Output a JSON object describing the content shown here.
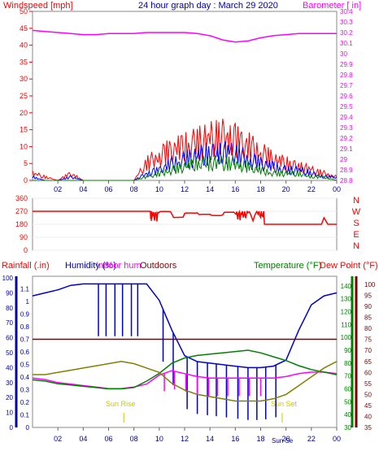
{
  "header": {
    "left": "Windspeed [mph]",
    "center": "24 hour graph day : March 29 2020",
    "right": "Barometer [ in]"
  },
  "bottom_header": {
    "rainfall": "Rainfall (.in)",
    "humidity": "Humidity (%)",
    "indoor": "Indoor hum",
    "outdoors": "Outdoors",
    "temperature": "Temperature (°F)",
    "dewpoint": "Dew Point (°F)"
  },
  "markers": {
    "sunrise": "Sun Rise",
    "sunset": "Sun Set",
    "sunset_bottom": "Sun Se"
  },
  "compass_letters": [
    "N",
    "W",
    "S",
    "E",
    "N"
  ],
  "colors": {
    "wind_gust": "#ff0000",
    "wind_avg": "#0000ff",
    "wind_low": "#008000",
    "barometer": "#ff00ff",
    "direction": "#ff0000",
    "humidity_out": "#0000cc",
    "humidity_in": "#ff00ff",
    "temperature": "#008000",
    "dewpoint": "#808000",
    "rain_line": "#800000",
    "axis_left": "#0000aa",
    "axis_right_temp": "#008000",
    "axis_right_dew": "#800000",
    "markers": "#c8c800"
  },
  "chart_data": [
    {
      "type": "line",
      "title": "24 hour graph day : March 29 2020",
      "ylabel": "Windspeed [mph]",
      "y2label": "Barometer [ in]",
      "ylim": [
        0,
        50
      ],
      "y2lim": [
        28.8,
        30.4
      ],
      "yticks": [
        0,
        5,
        10,
        15,
        20,
        25,
        30,
        35,
        40,
        45,
        50
      ],
      "y2ticks": [
        "28.8",
        "28.9",
        "29",
        "29.1",
        "29.2",
        "29.3",
        "29.4",
        "29.5",
        "29.6",
        "29.7",
        "29.8",
        "29.9",
        "30",
        "30.1",
        "30.2",
        "30.3",
        "30.4"
      ],
      "xticks": [
        "02",
        "04",
        "06",
        "08",
        "10",
        "12",
        "14",
        "16",
        "18",
        "20",
        "22",
        "00"
      ],
      "x_hours": [
        0,
        1,
        2,
        3,
        4,
        5,
        6,
        7,
        8,
        9,
        10,
        11,
        12,
        13,
        14,
        15,
        16,
        17,
        18,
        19,
        20,
        21,
        22,
        23,
        24
      ],
      "series": [
        {
          "name": "Gust",
          "values": [
            2,
            1,
            0,
            2,
            0,
            0,
            0,
            0,
            0,
            5,
            7,
            9,
            10,
            11,
            12,
            13,
            12,
            10,
            8,
            6,
            5,
            4,
            3,
            2,
            1
          ]
        },
        {
          "name": "Average",
          "values": [
            1,
            0,
            0,
            1,
            0,
            0,
            0,
            0,
            0,
            2,
            3,
            5,
            6,
            7,
            8,
            8,
            8,
            6,
            5,
            4,
            3,
            3,
            2,
            1,
            1
          ]
        },
        {
          "name": "Low",
          "values": [
            0,
            0,
            0,
            0,
            0,
            0,
            0,
            0,
            0,
            1,
            2,
            3,
            4,
            5,
            5,
            5,
            5,
            4,
            3,
            2,
            2,
            2,
            1,
            1,
            0
          ]
        },
        {
          "name": "Barometer",
          "values": [
            30.22,
            30.21,
            30.2,
            30.19,
            30.18,
            30.18,
            30.19,
            30.19,
            30.19,
            30.2,
            30.2,
            30.2,
            30.2,
            30.19,
            30.17,
            30.13,
            30.11,
            30.12,
            30.15,
            30.17,
            30.18,
            30.19,
            30.19,
            30.19,
            30.19
          ]
        }
      ]
    },
    {
      "type": "line",
      "ylim": [
        0,
        360
      ],
      "yticks": [
        0,
        90,
        180,
        270,
        360
      ],
      "xlim": [
        0,
        24
      ],
      "series": [
        {
          "name": "Direction",
          "points": [
            [
              0,
              270
            ],
            [
              9.3,
              270
            ],
            [
              9.5,
              240
            ],
            [
              10,
              265
            ],
            [
              11,
              250
            ],
            [
              12,
              255
            ],
            [
              13,
              260
            ],
            [
              14,
              250
            ],
            [
              15,
              245
            ],
            [
              16,
              255
            ],
            [
              16.5,
              250
            ],
            [
              17,
              260
            ],
            [
              17.8,
              250
            ],
            [
              18.3,
              180
            ],
            [
              22.8,
              180
            ],
            [
              23,
              225
            ],
            [
              23.3,
              180
            ],
            [
              24,
              180
            ]
          ]
        }
      ]
    },
    {
      "type": "line",
      "ylabel": "Rainfall (.in)",
      "ylim": [
        0,
        1.2
      ],
      "yticks": [
        "0",
        "0.1",
        "0.2",
        "0.3",
        "0.4",
        "0.5",
        "0.6",
        "0.7",
        "0.8",
        "0.9",
        "1",
        "1.1"
      ],
      "humidity_ticks": [
        0,
        10,
        20,
        30,
        40,
        50,
        60,
        70,
        80,
        90,
        100
      ],
      "temperature_ticks": [
        30,
        40,
        50,
        60,
        70,
        80,
        90,
        100,
        110,
        120,
        130,
        140
      ],
      "dewpoint_ticks": [
        35,
        40,
        45,
        50,
        55,
        60,
        65,
        70,
        75,
        80,
        85,
        90,
        95,
        100
      ],
      "xticks": [
        "02",
        "04",
        "06",
        "08",
        "10",
        "12",
        "14",
        "16",
        "18",
        "20",
        "22",
        "00"
      ],
      "x_hours": [
        0,
        1,
        2,
        3,
        4,
        5,
        6,
        7,
        8,
        9,
        10,
        11,
        12,
        13,
        14,
        15,
        16,
        17,
        18,
        19,
        20,
        21,
        22,
        23,
        24
      ],
      "series": [
        {
          "name": "Outdoors",
          "values": [
            88,
            90,
            92,
            95,
            96,
            96,
            96,
            96,
            96,
            96,
            85,
            65,
            48,
            44,
            43,
            42,
            41,
            40,
            40,
            41,
            45,
            65,
            82,
            88,
            90
          ]
        },
        {
          "name": "Indoor hum",
          "values": [
            33,
            32,
            30,
            29,
            28,
            27,
            26,
            26,
            27,
            29,
            35,
            38,
            36,
            34,
            33,
            33,
            33,
            33,
            33,
            33,
            34,
            36,
            37,
            37,
            36
          ]
        },
        {
          "name": "Temperature",
          "values": [
            67,
            66,
            64,
            63,
            62,
            61,
            60,
            60,
            61,
            66,
            72,
            80,
            84,
            86,
            87,
            88,
            89,
            90,
            88,
            85,
            82,
            78,
            75,
            73,
            71
          ]
        },
        {
          "name": "Dew Point",
          "values": [
            59,
            59,
            60,
            61,
            62,
            63,
            64,
            65,
            64,
            62,
            60,
            55,
            52,
            50,
            49,
            48,
            47,
            47,
            47,
            48,
            50,
            54,
            58,
            62,
            65
          ]
        },
        {
          "name": "Rainfall",
          "values": [
            0.7,
            0.7,
            0.7,
            0.7,
            0.7,
            0.7,
            0.7,
            0.7,
            0.7,
            0.7,
            0.7,
            0.7,
            0.7,
            0.7,
            0.7,
            0.7,
            0.7,
            0.7,
            0.7,
            0.7,
            0.7,
            0.7,
            0.7,
            0.7,
            0.7
          ]
        }
      ],
      "sunrise_hour": 7.2,
      "sunset_hour": 19.7
    }
  ]
}
